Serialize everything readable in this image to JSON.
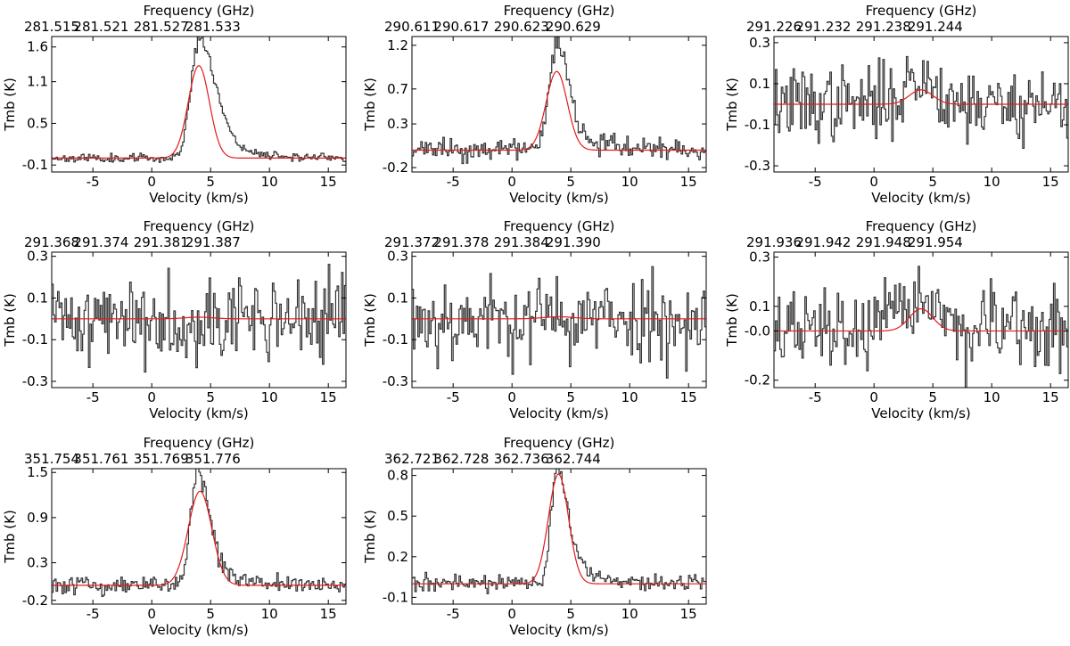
{
  "chart_data": [
    {
      "type": "line",
      "title": "Frequency (GHz)",
      "xlabel": "Velocity (km/s)",
      "ylabel": "Tmb (K)",
      "xlim": [
        -8.5,
        16.5
      ],
      "ylim": [
        -0.2,
        1.75
      ],
      "x_ticks": [
        -5,
        0,
        5,
        10,
        15
      ],
      "x_tick_labels": [
        "-5",
        "0",
        "5",
        "10",
        "15"
      ],
      "y_ticks": [
        -0.1,
        0.5,
        1.1,
        1.6
      ],
      "y_tick_labels": [
        "-0.1",
        "0.5",
        "1.1",
        "1.6"
      ],
      "top_ticks": [
        -8.5,
        -4.3,
        0.8,
        5.2
      ],
      "top_tick_labels": [
        "281.515",
        "281.521",
        "281.527",
        "281.533"
      ],
      "series": [
        {
          "name": "observed",
          "color": "#333333",
          "shape": "asym",
          "peak": 1.6,
          "center": 3.9,
          "width": 1.2,
          "noise": 0.03,
          "seed": 11
        },
        {
          "name": "gaussian fit",
          "color": "#e41a1c",
          "peak": 1.33,
          "center": 4.0,
          "width": 0.9
        }
      ]
    },
    {
      "type": "line",
      "title": "Frequency (GHz)",
      "xlabel": "Velocity (km/s)",
      "ylabel": "Tmb (K)",
      "xlim": [
        -8.5,
        16.5
      ],
      "ylim": [
        -0.25,
        1.3
      ],
      "x_ticks": [
        -5,
        0,
        5,
        10,
        15
      ],
      "x_tick_labels": [
        "-5",
        "0",
        "5",
        "10",
        "15"
      ],
      "y_ticks": [
        -0.2,
        0.3,
        0.7,
        1.2
      ],
      "y_tick_labels": [
        "-0.2",
        "0.3",
        "0.7",
        "1.2"
      ],
      "top_ticks": [
        -8.5,
        -4.3,
        0.8,
        5.2
      ],
      "top_tick_labels": [
        "290.611",
        "290.617",
        "290.623",
        "290.629"
      ],
      "series": [
        {
          "name": "observed",
          "color": "#333333",
          "shape": "asym",
          "peak": 1.15,
          "center": 3.6,
          "width": 0.95,
          "noise": 0.06,
          "seed": 23
        },
        {
          "name": "gaussian fit",
          "color": "#e41a1c",
          "peak": 0.9,
          "center": 3.8,
          "width": 0.9
        }
      ]
    },
    {
      "type": "line",
      "title": "Frequency (GHz)",
      "xlabel": "Velocity (km/s)",
      "ylabel": "Tmb (K)",
      "xlim": [
        -8.5,
        16.5
      ],
      "ylim": [
        -0.33,
        0.33
      ],
      "x_ticks": [
        -5,
        0,
        5,
        10,
        15
      ],
      "x_tick_labels": [
        "-5",
        "0",
        "5",
        "10",
        "15"
      ],
      "y_ticks": [
        -0.3,
        -0.1,
        0.1,
        0.3
      ],
      "y_tick_labels": [
        "-0.3",
        "-0.1",
        "0.1",
        "0.3"
      ],
      "top_ticks": [
        -8.5,
        -4.3,
        0.8,
        5.2
      ],
      "top_tick_labels": [
        "291.226",
        "291.232",
        "291.238",
        "291.244"
      ],
      "series": [
        {
          "name": "observed",
          "color": "#333333",
          "shape": "noise",
          "peak": 0.12,
          "center": 4.0,
          "width": 1.5,
          "noise": 0.09,
          "seed": 37
        },
        {
          "name": "gaussian fit",
          "color": "#e41a1c",
          "peak": 0.07,
          "center": 4.0,
          "width": 1.0
        }
      ]
    },
    {
      "type": "line",
      "title": "Frequency (GHz)",
      "xlabel": "Velocity (km/s)",
      "ylabel": "Tmb (K)",
      "xlim": [
        -8.5,
        16.5
      ],
      "ylim": [
        -0.33,
        0.32
      ],
      "x_ticks": [
        -5,
        0,
        5,
        10,
        15
      ],
      "x_tick_labels": [
        "-5",
        "0",
        "5",
        "10",
        "15"
      ],
      "y_ticks": [
        -0.3,
        -0.1,
        0.1,
        0.3
      ],
      "y_tick_labels": [
        "-0.3",
        "-0.1",
        "0.1",
        "0.3"
      ],
      "top_ticks": [
        -8.5,
        -4.3,
        0.8,
        5.2
      ],
      "top_tick_labels": [
        "291.368",
        "291.374",
        "291.381",
        "291.387"
      ],
      "series": [
        {
          "name": "observed",
          "color": "#333333",
          "shape": "noise",
          "peak": 0.0,
          "center": 4.0,
          "width": 1.0,
          "noise": 0.1,
          "seed": 41
        },
        {
          "name": "gaussian fit",
          "color": "#e41a1c",
          "peak": 0.008,
          "center": 4.0,
          "width": 1.2
        }
      ]
    },
    {
      "type": "line",
      "title": "Frequency (GHz)",
      "xlabel": "Velocity (km/s)",
      "ylabel": "Tmb (K)",
      "xlim": [
        -8.5,
        16.5
      ],
      "ylim": [
        -0.33,
        0.32
      ],
      "x_ticks": [
        -5,
        0,
        5,
        10,
        15
      ],
      "x_tick_labels": [
        "-5",
        "0",
        "5",
        "10",
        "15"
      ],
      "y_ticks": [
        -0.3,
        -0.1,
        0.1,
        0.3
      ],
      "y_tick_labels": [
        "-0.3",
        "-0.1",
        "0.1",
        "0.3"
      ],
      "top_ticks": [
        -8.5,
        -4.3,
        0.8,
        5.2
      ],
      "top_tick_labels": [
        "291.372",
        "291.378",
        "291.384",
        "291.390"
      ],
      "series": [
        {
          "name": "observed",
          "color": "#333333",
          "shape": "noise",
          "peak": 0.0,
          "center": 4.0,
          "width": 1.0,
          "noise": 0.1,
          "seed": 53
        },
        {
          "name": "gaussian fit",
          "color": "#e41a1c",
          "peak": 0.01,
          "center": 4.0,
          "width": 1.3
        }
      ]
    },
    {
      "type": "line",
      "title": "Frequency (GHz)",
      "xlabel": "Velocity (km/s)",
      "ylabel": "Tmb (K)",
      "xlim": [
        -8.5,
        16.5
      ],
      "ylim": [
        -0.23,
        0.32
      ],
      "x_ticks": [
        -5,
        0,
        5,
        10,
        15
      ],
      "x_tick_labels": [
        "-5",
        "0",
        "5",
        "10",
        "15"
      ],
      "y_ticks": [
        -0.2,
        -0.0,
        0.1,
        0.3
      ],
      "y_tick_labels": [
        "-0.2",
        "-0.0",
        "0.1",
        "0.3"
      ],
      "top_ticks": [
        -8.5,
        -4.3,
        0.8,
        5.2
      ],
      "top_tick_labels": [
        "291.936",
        "291.942",
        "291.948",
        "291.954"
      ],
      "series": [
        {
          "name": "observed",
          "color": "#333333",
          "shape": "noise",
          "peak": 0.14,
          "center": 4.0,
          "width": 1.4,
          "noise": 0.08,
          "seed": 67
        },
        {
          "name": "gaussian fit",
          "color": "#e41a1c",
          "peak": 0.09,
          "center": 4.0,
          "width": 1.0
        }
      ]
    },
    {
      "type": "line",
      "title": "Frequency (GHz)",
      "xlabel": "Velocity (km/s)",
      "ylabel": "Tmb (K)",
      "xlim": [
        -8.5,
        16.5
      ],
      "ylim": [
        -0.25,
        1.55
      ],
      "x_ticks": [
        -5,
        0,
        5,
        10,
        15
      ],
      "x_tick_labels": [
        "-5",
        "0",
        "5",
        "10",
        "15"
      ],
      "y_ticks": [
        -0.2,
        0.3,
        0.9,
        1.5
      ],
      "y_tick_labels": [
        "-0.2",
        "0.3",
        "0.9",
        "1.5"
      ],
      "top_ticks": [
        -8.5,
        -4.3,
        0.8,
        5.2
      ],
      "top_tick_labels": [
        "351.754",
        "351.761",
        "351.769",
        "351.776"
      ],
      "series": [
        {
          "name": "observed",
          "color": "#333333",
          "shape": "asym",
          "peak": 1.45,
          "center": 3.7,
          "width": 0.9,
          "noise": 0.06,
          "seed": 79
        },
        {
          "name": "gaussian fit",
          "color": "#e41a1c",
          "peak": 1.25,
          "center": 4.1,
          "width": 1.0
        }
      ]
    },
    {
      "type": "line",
      "title": "Frequency (GHz)",
      "xlabel": "Velocity (km/s)",
      "ylabel": "Tmb (K)",
      "xlim": [
        -8.5,
        16.5
      ],
      "ylim": [
        -0.15,
        0.85
      ],
      "x_ticks": [
        -5,
        0,
        5,
        10,
        15
      ],
      "x_tick_labels": [
        "-5",
        "0",
        "5",
        "10",
        "15"
      ],
      "y_ticks": [
        -0.1,
        0.2,
        0.5,
        0.8
      ],
      "y_tick_labels": [
        "-0.1",
        "0.2",
        "0.5",
        "0.8"
      ],
      "top_ticks": [
        -8.5,
        -4.3,
        0.8,
        5.2
      ],
      "top_tick_labels": [
        "362.721",
        "362.728",
        "362.736",
        "362.744"
      ],
      "series": [
        {
          "name": "observed",
          "color": "#333333",
          "shape": "asym",
          "peak": 0.78,
          "center": 3.7,
          "width": 0.85,
          "noise": 0.03,
          "seed": 97
        },
        {
          "name": "gaussian fit",
          "color": "#e41a1c",
          "peak": 0.81,
          "center": 3.95,
          "width": 0.85
        }
      ]
    }
  ]
}
